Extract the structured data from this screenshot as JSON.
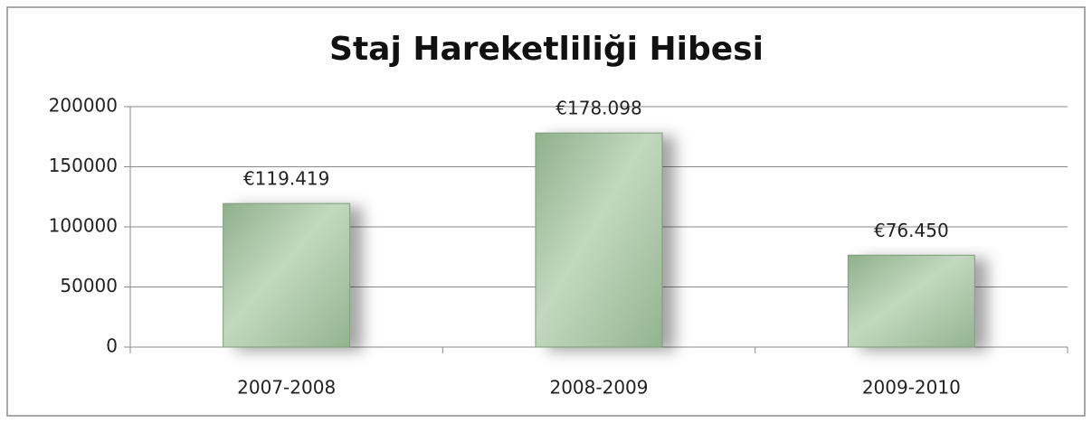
{
  "chart_data": {
    "type": "bar",
    "title": "Staj Hareketliliği Hibesi",
    "categories": [
      "2007-2008",
      "2008-2009",
      "2009-2010"
    ],
    "values": [
      119419,
      178098,
      76450
    ],
    "value_labels": [
      "€119.419",
      "€178.098",
      "€76.450"
    ],
    "color": "#a9c6a5",
    "ylim": [
      0,
      200000
    ],
    "yticks": [
      0,
      50000,
      100000,
      150000,
      200000
    ],
    "grid": true
  }
}
